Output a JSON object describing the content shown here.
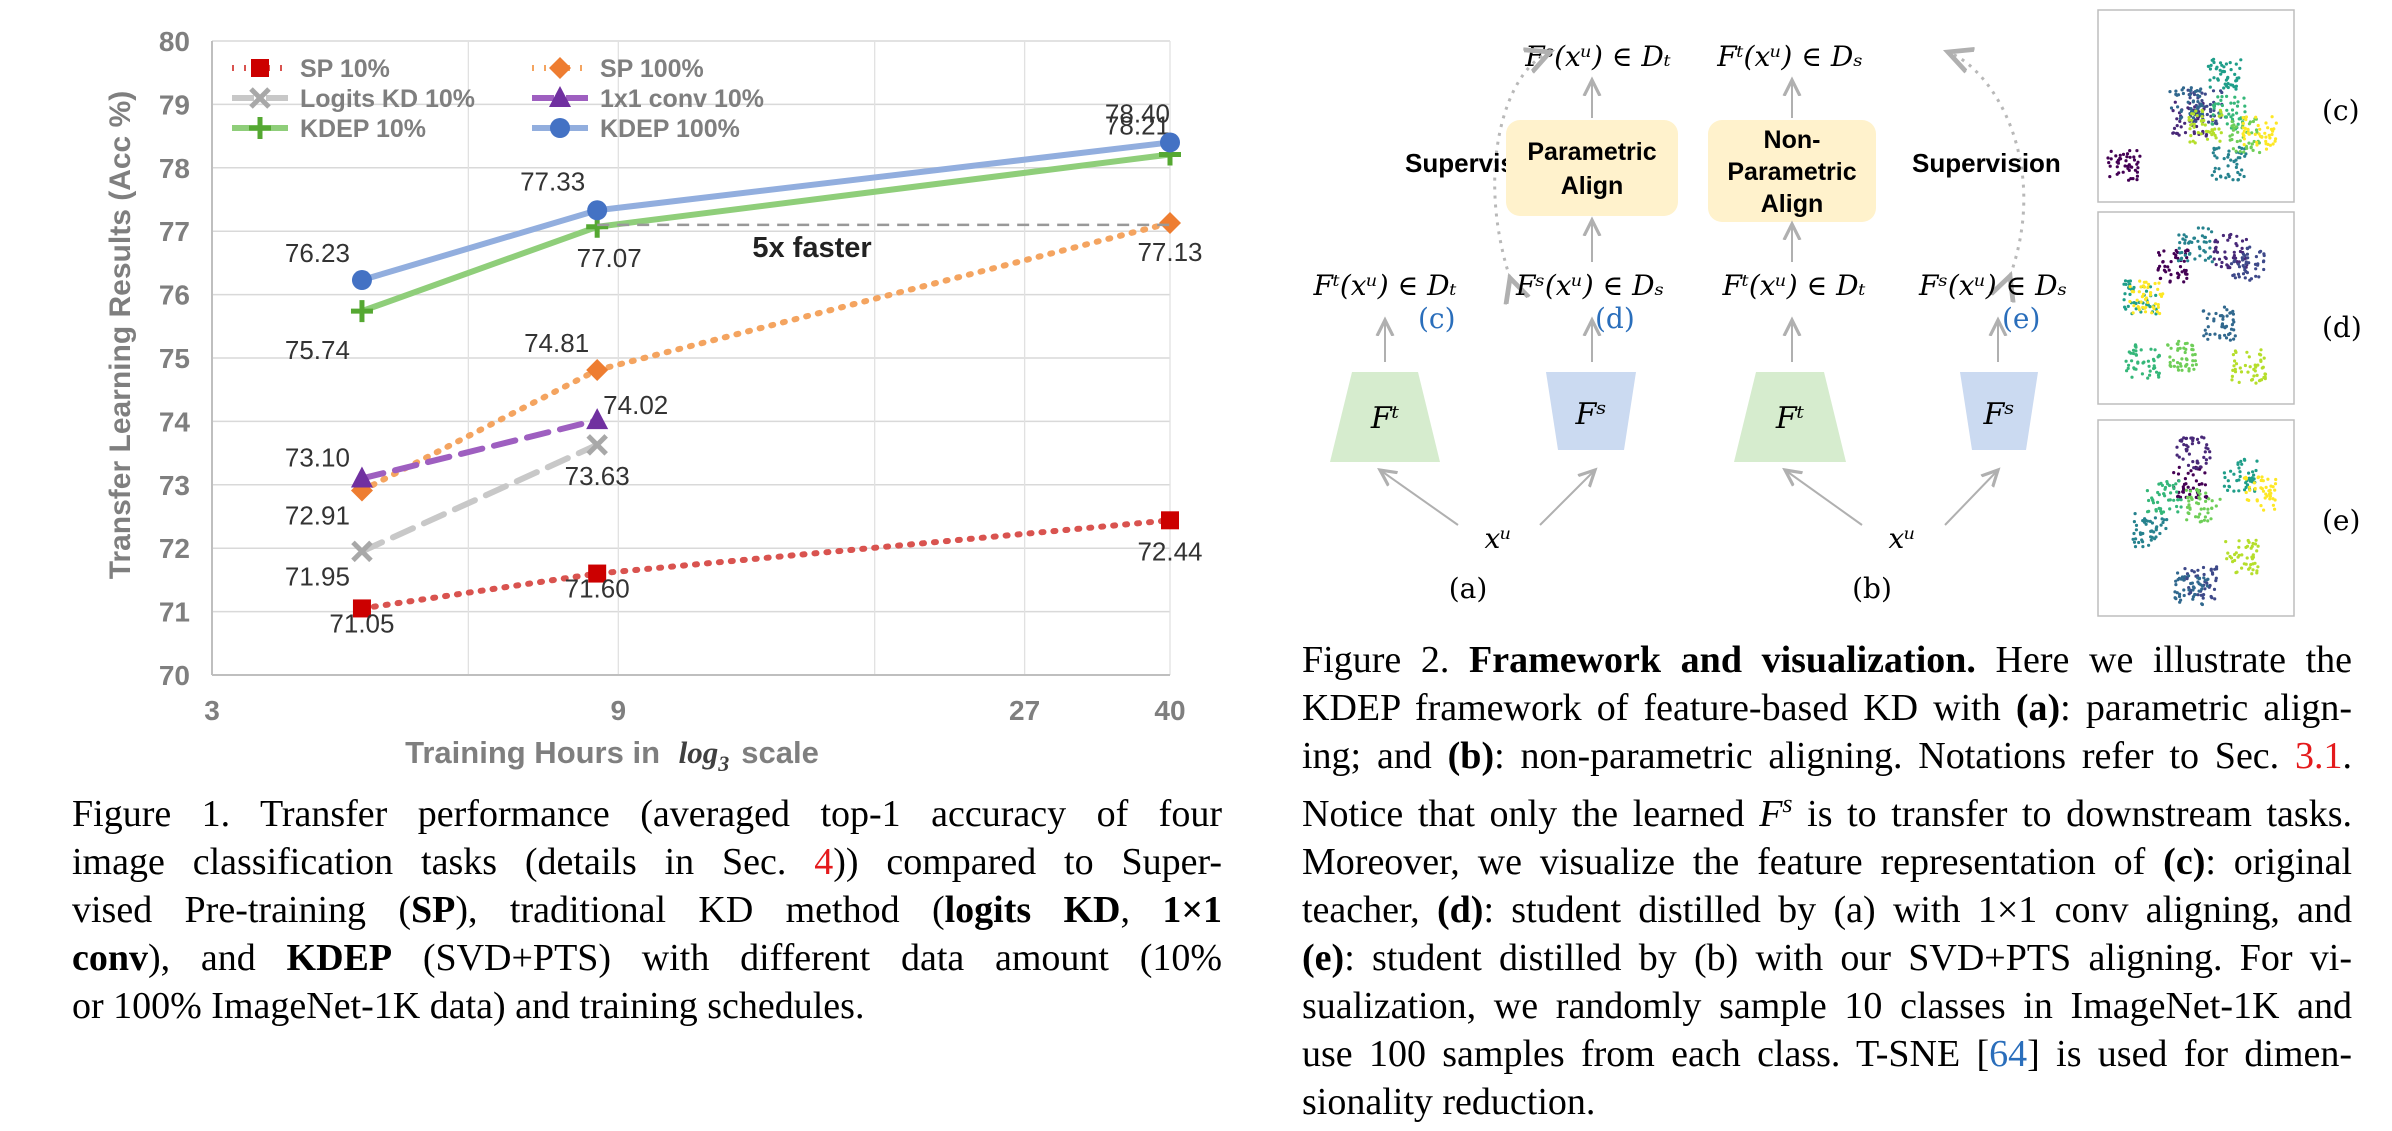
{
  "figure1": {
    "chart_data": {
      "type": "line",
      "xlabel": "Training Hours in",
      "xlabel_math": "log",
      "xlabel_math_sub": "3",
      "xlabel_suffix": "scale",
      "ylabel": "Transfer Learning Results (Acc %)",
      "x_scale": "log3",
      "xlim": [
        3,
        40
      ],
      "ylim": [
        70,
        80
      ],
      "grid": true,
      "legend_position": "top-left",
      "x_ticks": [
        3,
        9,
        27,
        40
      ],
      "y_ticks": [
        70,
        71,
        72,
        73,
        74,
        75,
        76,
        77,
        78,
        79,
        80
      ],
      "series": [
        {
          "name": "SP 10%",
          "color": "#d9534f",
          "marker_color": "#cc0000",
          "marker": "square",
          "dash": "dot",
          "x": [
            4.5,
            8.5,
            40
          ],
          "y": [
            71.05,
            71.6,
            72.44
          ],
          "labels": [
            "71.05",
            "71.60",
            "72.44"
          ]
        },
        {
          "name": "SP 100%",
          "color": "#f4a460",
          "marker_color": "#ee7d31",
          "marker": "diamond",
          "dash": "dot",
          "x": [
            4.5,
            8.5,
            40
          ],
          "y": [
            72.91,
            74.81,
            77.13
          ],
          "labels": [
            "72.91",
            "74.81",
            "77.13"
          ]
        },
        {
          "name": "Logits KD 10%",
          "color": "#c8c8c8",
          "marker_color": "#a8a8a8",
          "marker": "x",
          "dash": "dash",
          "x": [
            4.5,
            8.5
          ],
          "y": [
            71.95,
            73.63
          ],
          "labels": [
            "71.95",
            "73.63"
          ]
        },
        {
          "name": "1x1 conv 10%",
          "color": "#9e5fc0",
          "marker_color": "#7030a0",
          "marker": "triangle",
          "dash": "dash",
          "x": [
            4.5,
            8.5
          ],
          "y": [
            73.1,
            74.02
          ],
          "labels": [
            "73.10",
            "74.02"
          ]
        },
        {
          "name": "KDEP 10%",
          "color": "#8fce7a",
          "marker_color": "#55a832",
          "marker": "plus",
          "dash": "solid",
          "x": [
            4.5,
            8.5,
            40
          ],
          "y": [
            75.74,
            77.07,
            78.21
          ],
          "labels": [
            "75.74",
            "77.07",
            "78.21"
          ]
        },
        {
          "name": "KDEP 100%",
          "color": "#92aede",
          "marker_color": "#4472c4",
          "marker": "circle",
          "dash": "solid",
          "x": [
            4.5,
            8.5,
            40
          ],
          "y": [
            76.23,
            77.33,
            78.4
          ],
          "labels": [
            "76.23",
            "77.33",
            "78.40"
          ]
        }
      ],
      "annotations": [
        {
          "text": "5x faster",
          "from": [
            8.5,
            77.1
          ],
          "to": [
            40,
            77.1
          ]
        }
      ]
    },
    "caption": {
      "prefix": "Figure 1.",
      "line1": "Transfer performance (averaged top-1 accuracy of four",
      "line2a": "image classification tasks (details in Sec.",
      "ref": "4",
      "line2b": ")) compared to Super-",
      "line3a": "vised Pre-training (",
      "sp": "SP",
      "line3b": "), traditional KD method (",
      "kd": "logits KD",
      "line3c": ",",
      "conv1": "1×1",
      "conv2": "conv",
      "line4a": "), and",
      "kdep": "KDEP",
      "line4b": "(SVD+PTS) with different data amount (10%",
      "line5": "or 100% ImageNet-1K data) and training schedules."
    }
  },
  "figure2": {
    "diagram": {
      "supervision": "Supervision",
      "parametric_align": [
        "Parametric",
        "Align"
      ],
      "nonparametric_align": [
        "Non-",
        "Parametric",
        "Align"
      ],
      "label_a": "(a)",
      "label_b": "(b)",
      "panel_c": "(c)",
      "panel_d": "(d)",
      "panel_e": "(e)",
      "math": {
        "fs_dt": "Fˢ(xᵘ) ∈ Dₜ",
        "ft_ds": "Fᵗ(xᵘ) ∈ Dₛ",
        "ft_dt": "Fᵗ(xᵘ) ∈ Dₜ",
        "fs_ds": "Fˢ(xᵘ) ∈ Dₛ",
        "teacher": "Fᵗ",
        "student": "Fˢ",
        "input": "xᵘ"
      },
      "colors": {
        "teacher": "#d6ecce",
        "student": "#cbdaf1",
        "align_box": "#fff2cc",
        "ref_blue": "#2a6ebb"
      }
    },
    "caption": {
      "prefix": "Figure 2.",
      "title": "Framework and visualization.",
      "l1": "Here we illustrate the",
      "l2a": "KDEP framework of feature-based KD with",
      "a": "(a)",
      "l2b": ": parametric align-",
      "l3a": "ing; and",
      "b": "(b)",
      "l3b": ": non-parametric aligning. Notations refer to Sec.",
      "ref31": "3.1",
      "l3c": ".",
      "l4a": "Notice that only the learned",
      "l4fs": "F",
      "l4sup": "s",
      "l4b": "is to transfer to downstream tasks.",
      "l5a": "Moreover, we visualize the feature representation of",
      "c": "(c)",
      "l5b": ": original",
      "l6a": "teacher,",
      "d": "(d)",
      "l6b": ": student distilled by (a) with 1×1 conv aligning, and",
      "e": "(e)",
      "l7": ": student distilled by (b) with our SVD+PTS aligning. For vi-",
      "l8": "sualization, we randomly sample 10 classes in ImageNet-1K and",
      "l9a": "use 100 samples from each class. T-SNE [",
      "ref64": "64",
      "l9b": "] is used for dimen-",
      "l10": "sionality reduction."
    }
  }
}
